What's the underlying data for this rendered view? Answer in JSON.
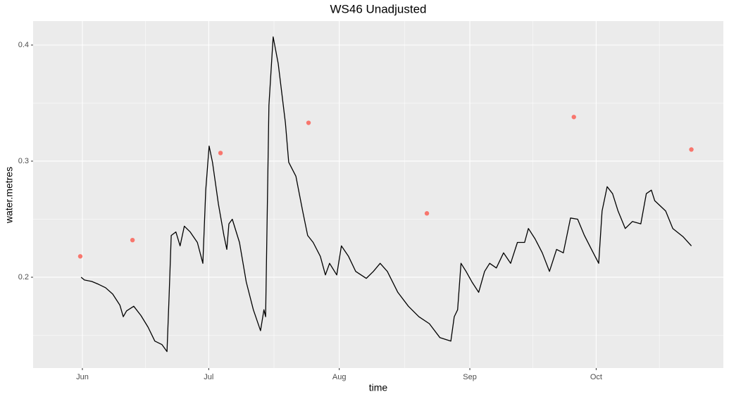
{
  "chart_data": {
    "type": "line",
    "title": "WS46 Unadjusted",
    "x_label": "time",
    "y_label": "water.metres",
    "xlim": [
      -11.7,
      152.2
    ],
    "ylim": [
      0.1218,
      0.4206
    ],
    "xticks": [
      {
        "value": 0,
        "label": "Jun"
      },
      {
        "value": 30,
        "label": "Jul"
      },
      {
        "value": 61,
        "label": "Aug"
      },
      {
        "value": 92,
        "label": "Sep"
      },
      {
        "value": 122,
        "label": "Oct"
      }
    ],
    "yticks": [
      0.2,
      0.3,
      0.4
    ],
    "grid": true,
    "series": [
      {
        "type": "line",
        "color": "#000000",
        "x": [
          -0.3,
          0.5,
          2.2,
          3.8,
          5.5,
          7.2,
          8.9,
          9.7,
          10.5,
          12.2,
          13.9,
          15.6,
          17.2,
          18.9,
          20.1,
          20.6,
          21.1,
          22.2,
          23.2,
          24.2,
          25.6,
          27.3,
          28.6,
          29.3,
          30.1,
          30.9,
          32.3,
          33.6,
          34.3,
          34.8,
          35.6,
          37.3,
          38.9,
          40.6,
          42.3,
          43.1,
          43.5,
          44.3,
          45.3,
          46.5,
          47.3,
          48.2,
          49.0,
          50.7,
          52.3,
          53.5,
          54.8,
          56.5,
          57.7,
          58.7,
          60.4,
          61.5,
          63.2,
          64.9,
          67.4,
          69.1,
          70.7,
          72.4,
          74.9,
          77.4,
          79.9,
          82.4,
          84.9,
          87.5,
          88.3,
          89.1,
          89.9,
          91.1,
          92.5,
          94.1,
          95.5,
          96.7,
          98.3,
          100.0,
          101.7,
          103.3,
          105.0,
          105.9,
          107.5,
          109.2,
          110.9,
          112.6,
          114.2,
          115.9,
          117.6,
          119.2,
          120.9,
          122.6,
          123.4,
          124.6,
          125.9,
          127.2,
          128.9,
          130.6,
          132.6,
          133.9,
          135.1,
          135.9,
          138.5,
          140.2,
          142.6,
          144.6
        ],
        "values": [
          0.2,
          0.1976,
          0.1964,
          0.194,
          0.191,
          0.1855,
          0.176,
          0.166,
          0.171,
          0.175,
          0.167,
          0.157,
          0.145,
          0.142,
          0.136,
          0.184,
          0.236,
          0.239,
          0.227,
          0.244,
          0.239,
          0.23,
          0.212,
          0.275,
          0.313,
          0.299,
          0.263,
          0.236,
          0.224,
          0.246,
          0.25,
          0.23,
          0.196,
          0.172,
          0.154,
          0.172,
          0.166,
          0.348,
          0.407,
          0.384,
          0.36,
          0.333,
          0.299,
          0.287,
          0.257,
          0.236,
          0.23,
          0.218,
          0.202,
          0.212,
          0.202,
          0.227,
          0.218,
          0.205,
          0.199,
          0.205,
          0.212,
          0.205,
          0.187,
          0.175,
          0.166,
          0.16,
          0.148,
          0.145,
          0.166,
          0.172,
          0.212,
          0.205,
          0.196,
          0.187,
          0.205,
          0.212,
          0.208,
          0.221,
          0.212,
          0.23,
          0.23,
          0.242,
          0.233,
          0.221,
          0.205,
          0.224,
          0.221,
          0.251,
          0.25,
          0.236,
          0.224,
          0.212,
          0.257,
          0.278,
          0.272,
          0.257,
          0.242,
          0.248,
          0.246,
          0.272,
          0.275,
          0.266,
          0.257,
          0.242,
          0.235,
          0.227
        ]
      },
      {
        "type": "scatter",
        "color": "#F8766D",
        "x": [
          -0.5,
          11.9,
          32.8,
          53.7,
          81.8,
          116.7,
          144.6
        ],
        "values": [
          0.218,
          0.232,
          0.307,
          0.333,
          0.255,
          0.338,
          0.31
        ]
      }
    ]
  }
}
